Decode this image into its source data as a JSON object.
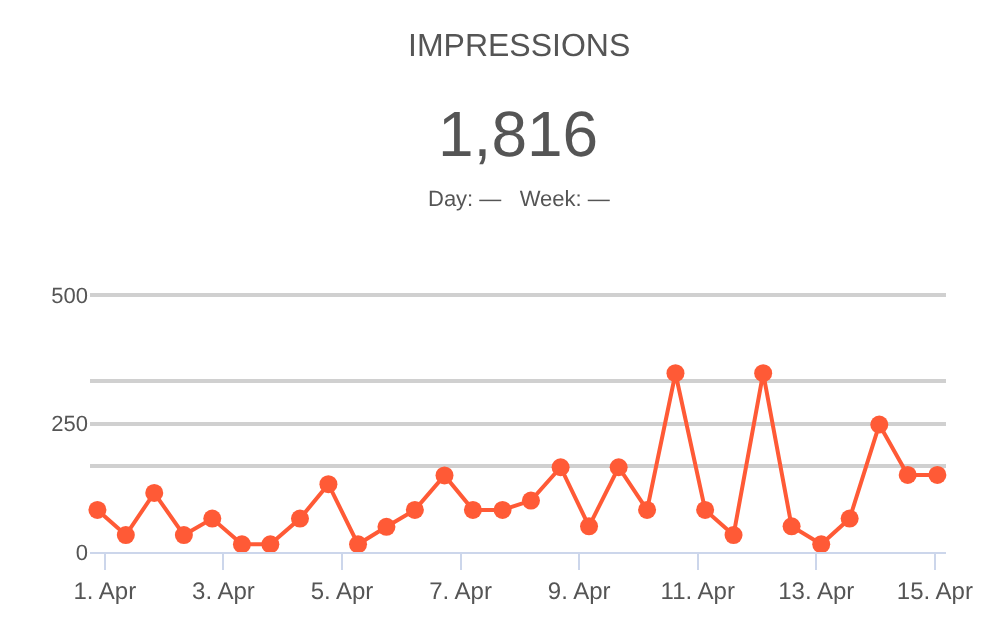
{
  "chart_data": {
    "type": "line",
    "title": "IMPRESSIONS",
    "subtitle": "1,816",
    "annotations": [
      "Day: —   Week: —"
    ],
    "x": [
      "--03-31T21:00",
      "--04-01T08:30",
      "--04-01T20:00",
      "--04-02T08:00",
      "--04-02T19:30",
      "--04-03T07:30",
      "--04-03T19:00",
      "--04-04T07:00",
      "--04-04T18:30",
      "--04-05T06:30",
      "--04-05T18:00",
      "--04-06T05:30",
      "--04-06T17:30",
      "--04-07T05:00",
      "--04-07T17:00",
      "--04-08T04:30",
      "--04-08T16:30",
      "--04-09T04:00",
      "--04-09T16:00",
      "--04-10T03:30",
      "--04-10T15:00",
      "--04-11T03:00",
      "--04-11T14:30",
      "--04-12T02:30",
      "--04-12T14:00",
      "--04-13T02:00",
      "--04-13T13:30",
      "--04-14T01:30",
      "--04-14T13:00",
      "--04-15T01:00"
    ],
    "series": [
      {
        "color": "#ff5a36",
        "values": [
          82,
          33,
          115,
          33,
          65,
          15,
          15,
          65,
          132,
          15,
          49,
          82,
          149,
          82,
          82,
          100,
          165,
          50,
          165,
          82,
          348,
          82,
          33,
          348,
          50,
          15,
          65,
          248,
          150,
          150
        ]
      }
    ],
    "xlim": [
      "--03-31T18:00",
      "--04-15T04:30"
    ],
    "xticks": [
      {
        "value": "--04-01",
        "label": "1. Apr"
      },
      {
        "value": "--04-03",
        "label": "3. Apr"
      },
      {
        "value": "--04-05",
        "label": "5. Apr"
      },
      {
        "value": "--04-07",
        "label": "7. Apr"
      },
      {
        "value": "--04-09",
        "label": "9. Apr"
      },
      {
        "value": "--04-11",
        "label": "11. Apr"
      },
      {
        "value": "--04-13",
        "label": "13. Apr"
      },
      {
        "value": "--04-15",
        "label": "15. Apr"
      }
    ],
    "ylim": [
      0,
      510
    ],
    "yticks": [
      0,
      {
        "value": 166.67,
        "label": null
      },
      250,
      {
        "value": 333.33,
        "label": null
      },
      500
    ],
    "grid": "y",
    "marker": "circle",
    "line_style": "solid"
  }
}
